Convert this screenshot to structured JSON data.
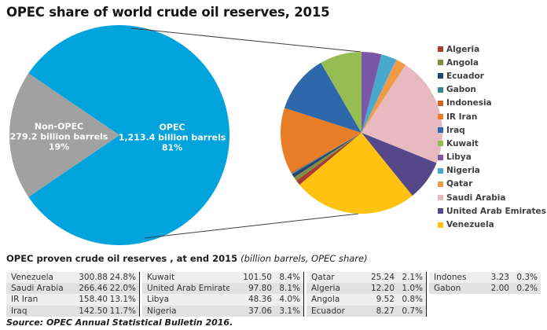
{
  "title": "OPEC share of world crude oil reserves, 2015",
  "colors": {
    "opec_blue": "#00A3DC",
    "non_opec_gray": "#A1A1A1",
    "connector_line": "#3f3f3f",
    "table_row_light": "#EFEFEF",
    "table_row_dark": "#E1E1E1"
  },
  "chart_data": [
    {
      "type": "pie",
      "name": "world-crude-reserves-share",
      "units": "billion barrels",
      "slices": [
        {
          "label": "OPEC",
          "sublabel": "1,213.4 billion barrels",
          "pct_label": "81%",
          "value": 1213.4,
          "share_pct": 81,
          "color": "#00A3DC"
        },
        {
          "label": "Non-OPEC",
          "sublabel": "279.2 billion barrels",
          "pct_label": "19%",
          "value": 279.2,
          "share_pct": 19,
          "color": "#A1A1A1"
        }
      ],
      "layout_hint": "non-OPEC wedge centered at 9 o'clock; expanded connector lines to right pie"
    },
    {
      "type": "pie",
      "name": "opec-members-breakdown",
      "units": "billion barrels",
      "slices": [
        {
          "label": "Algeria",
          "value": 12.2,
          "share_pct": 1.0,
          "color": "#A93B32"
        },
        {
          "label": "Angola",
          "value": 9.52,
          "share_pct": 0.8,
          "color": "#7F8F3F"
        },
        {
          "label": "Ecuador",
          "value": 8.27,
          "share_pct": 0.7,
          "color": "#27426E"
        },
        {
          "label": "Gabon",
          "value": 2.0,
          "share_pct": 0.2,
          "color": "#35868F"
        },
        {
          "label": "Indonesia",
          "value": 3.23,
          "share_pct": 0.3,
          "color": "#D2642A"
        },
        {
          "label": "IR Iran",
          "value": 158.4,
          "share_pct": 13.1,
          "color": "#E87D25"
        },
        {
          "label": "Iraq",
          "value": 142.5,
          "share_pct": 11.7,
          "color": "#2E68AA"
        },
        {
          "label": "Kuwait",
          "value": 101.5,
          "share_pct": 8.4,
          "color": "#95BD51"
        },
        {
          "label": "Libya",
          "value": 48.36,
          "share_pct": 4.0,
          "color": "#7A56A8"
        },
        {
          "label": "Nigeria",
          "value": 37.06,
          "share_pct": 3.1,
          "color": "#48A8CE"
        },
        {
          "label": "Qatar",
          "value": 25.24,
          "share_pct": 2.1,
          "color": "#F09A48"
        },
        {
          "label": "Saudi Arabia",
          "value": 266.46,
          "share_pct": 22.0,
          "color": "#E7BAC2"
        },
        {
          "label": "United Arab Emirates",
          "value": 97.8,
          "share_pct": 8.1,
          "color": "#54478A"
        },
        {
          "label": "Venezuela",
          "value": 300.88,
          "share_pct": 24.8,
          "color": "#FEC310"
        }
      ],
      "draw_order_clockwise_from_top": [
        "Libya",
        "Nigeria",
        "Qatar",
        "Saudi Arabia",
        "United Arab Emirates",
        "Venezuela",
        "Algeria",
        "Angola",
        "Ecuador",
        "Gabon",
        "Indonesia",
        "IR Iran",
        "Iraq",
        "Kuwait"
      ],
      "legend_position": "right"
    }
  ],
  "legend": {
    "items": [
      "Algeria",
      "Angola",
      "Ecuador",
      "Gabon",
      "Indonesia",
      "IR Iran",
      "Iraq",
      "Kuwait",
      "Libya",
      "Nigeria",
      "Qatar",
      "Saudi Arabia",
      "United Arab Emirates",
      "Venezuela"
    ]
  },
  "table": {
    "caption_main": "OPEC proven crude oil reserves , at end 2015 ",
    "caption_note": "(billion barrels, OPEC share)",
    "groups": [
      [
        {
          "country": "Venezuela",
          "value": "300.88",
          "share": "24.8%"
        },
        {
          "country": "Saudi Arabia",
          "value": "266.46",
          "share": "22.0%"
        },
        {
          "country": "IR Iran",
          "value": "158.40",
          "share": "13.1%"
        },
        {
          "country": "Iraq",
          "value": "142.50",
          "share": "11.7%"
        }
      ],
      [
        {
          "country": "Kuwait",
          "value": "101.50",
          "share": "8.4%"
        },
        {
          "country": "United Arab Emirates",
          "value": "97.80",
          "share": "8.1%"
        },
        {
          "country": "Libya",
          "value": "48.36",
          "share": "4.0%"
        },
        {
          "country": "Nigeria",
          "value": "37.06",
          "share": "3.1%"
        }
      ],
      [
        {
          "country": "Qatar",
          "value": "25.24",
          "share": "2.1%"
        },
        {
          "country": "Algeria",
          "value": "12.20",
          "share": "1.0%"
        },
        {
          "country": "Angola",
          "value": "9.52",
          "share": "0.8%"
        },
        {
          "country": "Ecuador",
          "value": "8.27",
          "share": "0.7%"
        }
      ],
      [
        {
          "country": "Indonesia",
          "value": "3.23",
          "share": "0.3%"
        },
        {
          "country": "Gabon",
          "value": "2.00",
          "share": "0.2%"
        }
      ]
    ]
  },
  "source": "Source: OPEC Annual Statistical Bulletin 2016."
}
